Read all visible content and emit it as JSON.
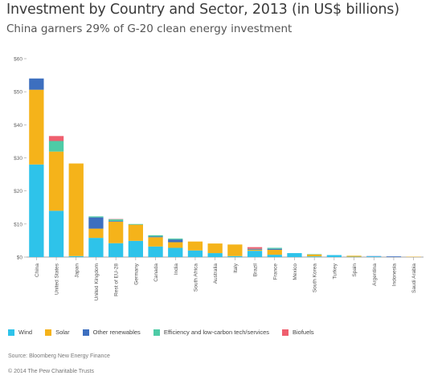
{
  "title": "Investment by Country and Sector, 2013 (in US$ billions)",
  "subtitle": "China garners 29% of G-20 clean energy investment",
  "source": "Source: Bloomberg New Energy Finance",
  "copyright": "© 2014 The Pew Charitable Trusts",
  "chart_data": {
    "type": "bar",
    "stacked": true,
    "title": "Investment by Country and Sector, 2013 (in US$ billions)",
    "subtitle": "China garners 29% of G-20 clean energy investment",
    "xlabel": "",
    "ylabel": "",
    "ylim": [
      0,
      60
    ],
    "yticks": [
      0,
      10,
      20,
      30,
      40,
      50,
      60
    ],
    "ytick_labels": [
      "$0",
      "$10",
      "$20",
      "$30",
      "$40",
      "$50",
      "$60"
    ],
    "grid": false,
    "legend_position": "bottom",
    "categories": [
      "China",
      "United States",
      "Japan",
      "United Kingdom",
      "Rest of EU-28",
      "Germany",
      "Canada",
      "India",
      "South Africa",
      "Australia",
      "Italy",
      "Brazil",
      "France",
      "Mexico",
      "South Korea",
      "Turkey",
      "Spain",
      "Argentina",
      "Indonesia",
      "Saudi Arabia"
    ],
    "series": [
      {
        "name": "Wind",
        "color": "#2ec3ea",
        "values": [
          28.0,
          14.0,
          0.3,
          5.8,
          4.2,
          4.9,
          3.2,
          2.8,
          2.0,
          1.2,
          0.3,
          1.9,
          0.7,
          1.2,
          0.2,
          0.6,
          0.1,
          0.2,
          0.0,
          0.0
        ]
      },
      {
        "name": "Solar",
        "color": "#f5b31a",
        "values": [
          22.6,
          17.9,
          28.0,
          2.8,
          6.5,
          4.9,
          2.8,
          1.7,
          2.7,
          2.9,
          3.5,
          0.3,
          1.5,
          0.0,
          0.6,
          0.0,
          0.3,
          0.0,
          0.0,
          0.1
        ]
      },
      {
        "name": "Other renewables",
        "color": "#3d6fbf",
        "values": [
          3.4,
          0.0,
          0.0,
          3.4,
          0.2,
          0.0,
          0.2,
          0.8,
          0.0,
          0.0,
          0.0,
          0.2,
          0.3,
          0.0,
          0.0,
          0.0,
          0.0,
          0.1,
          0.2,
          0.0
        ]
      },
      {
        "name": "Efficiency and low-carbon tech/services",
        "color": "#4ecba6",
        "values": [
          0.0,
          3.2,
          0.0,
          0.3,
          0.5,
          0.2,
          0.4,
          0.3,
          0.0,
          0.0,
          0.0,
          0.1,
          0.3,
          0.0,
          0.1,
          0.0,
          0.0,
          0.0,
          0.0,
          0.0
        ]
      },
      {
        "name": "Biofuels",
        "color": "#ef5f6e",
        "values": [
          0.0,
          1.5,
          0.0,
          0.0,
          0.1,
          0.0,
          0.0,
          0.0,
          0.0,
          0.0,
          0.0,
          0.5,
          0.0,
          0.0,
          0.0,
          0.0,
          0.0,
          0.0,
          0.0,
          0.0
        ]
      }
    ]
  }
}
